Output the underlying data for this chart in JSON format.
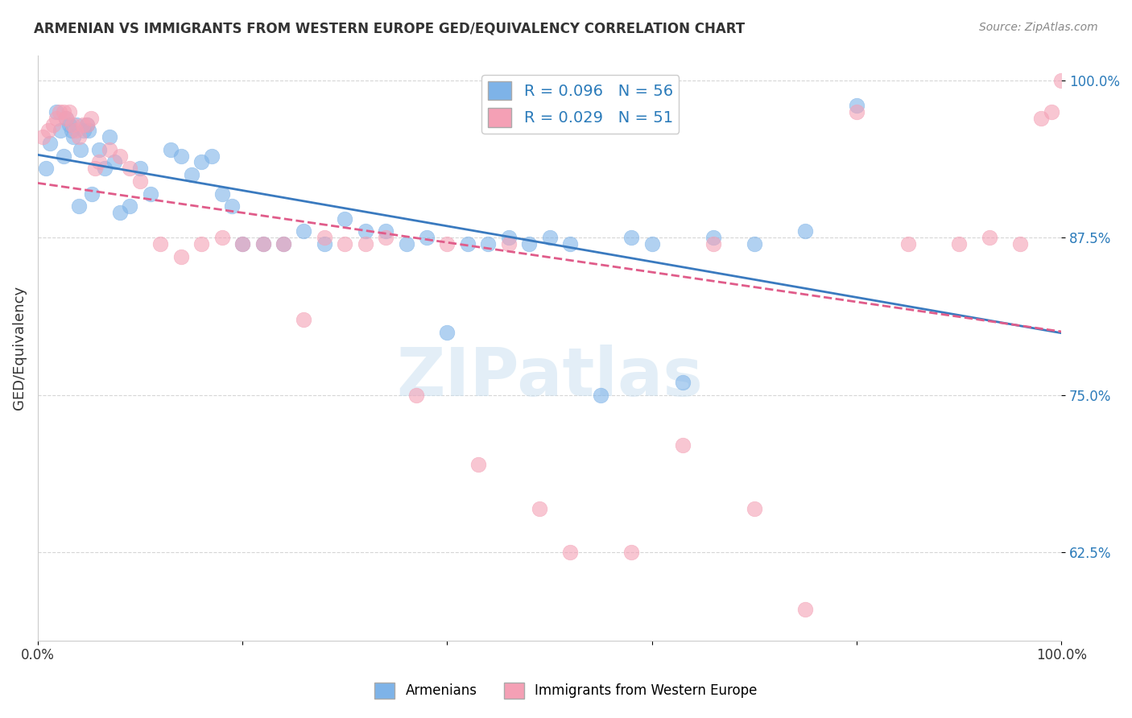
{
  "title": "ARMENIAN VS IMMIGRANTS FROM WESTERN EUROPE GED/EQUIVALENCY CORRELATION CHART",
  "source": "Source: ZipAtlas.com",
  "ylabel": "GED/Equivalency",
  "xlabel": "",
  "watermark": "ZIPatlas",
  "blue_label": "Armenians",
  "pink_label": "Immigrants from Western Europe",
  "blue_R": 0.096,
  "blue_N": 56,
  "pink_R": 0.029,
  "pink_N": 51,
  "xlim": [
    0.0,
    1.0
  ],
  "ylim": [
    0.555,
    1.02
  ],
  "yticks": [
    0.625,
    0.75,
    0.875,
    1.0
  ],
  "ytick_labels": [
    "62.5%",
    "75.0%",
    "87.5%",
    "100.0%"
  ],
  "xticks": [
    0.0,
    0.2,
    0.4,
    0.6,
    0.8,
    1.0
  ],
  "xtick_labels": [
    "0.0%",
    "",
    "",
    "",
    "",
    "100.0%"
  ],
  "blue_color": "#7eb3e8",
  "pink_color": "#f4a0b5",
  "blue_line_color": "#3a7abf",
  "pink_line_color": "#e05c8a",
  "background": "#ffffff",
  "grid_color": "#cccccc",
  "blue_x": [
    0.008,
    0.012,
    0.018,
    0.022,
    0.025,
    0.028,
    0.031,
    0.033,
    0.035,
    0.038,
    0.04,
    0.042,
    0.045,
    0.048,
    0.05,
    0.053,
    0.06,
    0.065,
    0.07,
    0.075,
    0.08,
    0.09,
    0.1,
    0.11,
    0.13,
    0.14,
    0.15,
    0.16,
    0.17,
    0.18,
    0.19,
    0.2,
    0.22,
    0.24,
    0.26,
    0.28,
    0.3,
    0.32,
    0.34,
    0.36,
    0.38,
    0.4,
    0.42,
    0.44,
    0.46,
    0.48,
    0.5,
    0.52,
    0.55,
    0.58,
    0.6,
    0.63,
    0.66,
    0.7,
    0.75,
    0.8
  ],
  "blue_y": [
    0.93,
    0.95,
    0.975,
    0.96,
    0.94,
    0.97,
    0.965,
    0.96,
    0.955,
    0.965,
    0.9,
    0.945,
    0.96,
    0.965,
    0.96,
    0.91,
    0.945,
    0.93,
    0.955,
    0.935,
    0.895,
    0.9,
    0.93,
    0.91,
    0.945,
    0.94,
    0.925,
    0.935,
    0.94,
    0.91,
    0.9,
    0.87,
    0.87,
    0.87,
    0.88,
    0.87,
    0.89,
    0.88,
    0.88,
    0.87,
    0.875,
    0.8,
    0.87,
    0.87,
    0.875,
    0.87,
    0.875,
    0.87,
    0.75,
    0.875,
    0.87,
    0.76,
    0.875,
    0.87,
    0.88,
    0.98
  ],
  "pink_x": [
    0.005,
    0.01,
    0.015,
    0.018,
    0.021,
    0.025,
    0.028,
    0.031,
    0.034,
    0.037,
    0.04,
    0.044,
    0.048,
    0.052,
    0.056,
    0.06,
    0.07,
    0.08,
    0.09,
    0.1,
    0.12,
    0.14,
    0.16,
    0.18,
    0.2,
    0.22,
    0.24,
    0.26,
    0.28,
    0.3,
    0.32,
    0.34,
    0.37,
    0.4,
    0.43,
    0.46,
    0.49,
    0.52,
    0.58,
    0.63,
    0.66,
    0.7,
    0.75,
    0.8,
    0.85,
    0.9,
    0.93,
    0.96,
    0.98,
    0.99,
    1.0
  ],
  "pink_y": [
    0.955,
    0.96,
    0.965,
    0.97,
    0.975,
    0.975,
    0.97,
    0.975,
    0.965,
    0.96,
    0.955,
    0.965,
    0.965,
    0.97,
    0.93,
    0.935,
    0.945,
    0.94,
    0.93,
    0.92,
    0.87,
    0.86,
    0.87,
    0.875,
    0.87,
    0.87,
    0.87,
    0.81,
    0.875,
    0.87,
    0.87,
    0.875,
    0.75,
    0.87,
    0.695,
    0.87,
    0.66,
    0.625,
    0.625,
    0.71,
    0.87,
    0.66,
    0.58,
    0.975,
    0.87,
    0.87,
    0.875,
    0.87,
    0.97,
    0.975,
    1.0
  ]
}
